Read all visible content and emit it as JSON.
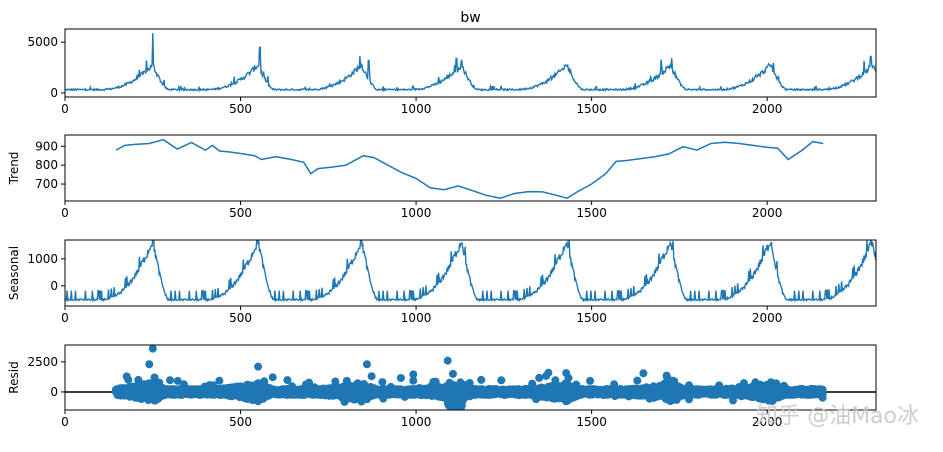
{
  "colors": {
    "series": "#1f77b4",
    "axis": "#000000",
    "zero_line": "#3a3a3a"
  },
  "watermark": "知乎 @油Mao冰",
  "chart_data": [
    {
      "type": "line",
      "title": "bw",
      "ylabel": "",
      "xlim": [
        0,
        2310
      ],
      "ylim": [
        -400,
        6300
      ],
      "xticks": [
        "0",
        "500",
        "1000",
        "1500",
        "2000"
      ],
      "yticks": [
        "0",
        "5000"
      ],
      "series": [
        {
          "x_start": 0,
          "x_end": 2310,
          "kind": "seasonal_noisy",
          "peaks": [
            250,
            550,
            845,
            1130,
            1430,
            1725,
            2010,
            2300
          ],
          "spikes": [
            [
              250,
              5900
            ],
            [
              555,
              4500
            ],
            [
              865,
              3200
            ],
            [
              1115,
              3400
            ],
            [
              2295,
              3600
            ]
          ]
        }
      ]
    },
    {
      "type": "line",
      "title": "",
      "ylabel": "Trend",
      "xlim": [
        0,
        2310
      ],
      "ylim": [
        610,
        960
      ],
      "xticks": [
        "0",
        "500",
        "1000",
        "1500",
        "2000"
      ],
      "yticks": [
        "700",
        "800",
        "900"
      ],
      "series": [
        {
          "x": [
            145,
            170,
            200,
            240,
            280,
            320,
            360,
            400,
            420,
            440,
            470,
            500,
            540,
            560,
            600,
            640,
            680,
            700,
            720,
            760,
            800,
            850,
            880,
            920,
            960,
            1000,
            1040,
            1080,
            1120,
            1160,
            1200,
            1240,
            1280,
            1320,
            1360,
            1400,
            1430,
            1460,
            1500,
            1540,
            1570,
            1600,
            1640,
            1680,
            1720,
            1760,
            1800,
            1840,
            1880,
            1920,
            1960,
            2000,
            2030,
            2060,
            2080,
            2100,
            2130,
            2160
          ],
          "y": [
            880,
            905,
            910,
            915,
            935,
            885,
            920,
            880,
            905,
            875,
            870,
            862,
            850,
            830,
            845,
            832,
            815,
            755,
            782,
            790,
            800,
            850,
            840,
            800,
            760,
            730,
            680,
            670,
            690,
            665,
            640,
            625,
            650,
            660,
            658,
            640,
            625,
            660,
            700,
            755,
            820,
            825,
            835,
            845,
            860,
            898,
            880,
            915,
            922,
            915,
            905,
            895,
            890,
            830,
            855,
            880,
            925,
            915
          ]
        }
      ]
    },
    {
      "type": "line",
      "title": "",
      "ylabel": "Seasonal",
      "xlim": [
        0,
        2310
      ],
      "ylim": [
        -750,
        1700
      ],
      "xticks": [
        "0",
        "500",
        "1000",
        "1500",
        "2000"
      ],
      "yticks": [
        "0",
        "1000"
      ],
      "series": [
        {
          "x_start": 0,
          "x_end": 2310,
          "kind": "seasonal_periodic",
          "peaks": [
            250,
            550,
            845,
            1130,
            1430,
            1725,
            2010,
            2300
          ]
        }
      ]
    },
    {
      "type": "scatter",
      "title": "",
      "ylabel": "Resid",
      "xlim": [
        0,
        2310
      ],
      "ylim": [
        -1500,
        3900
      ],
      "xticks": [
        "0",
        "500",
        "1000",
        "1500",
        "2000"
      ],
      "yticks": [
        "0",
        "2500"
      ],
      "series": [
        {
          "x_start": 145,
          "x_end": 2160,
          "kind": "residual_scatter",
          "outliers": [
            [
              250,
              3600
            ],
            [
              240,
              2300
            ],
            [
              550,
              2100
            ],
            [
              860,
              2300
            ],
            [
              1090,
              2600
            ],
            [
              1105,
              1500
            ],
            [
              1715,
              1200
            ]
          ]
        }
      ]
    }
  ]
}
